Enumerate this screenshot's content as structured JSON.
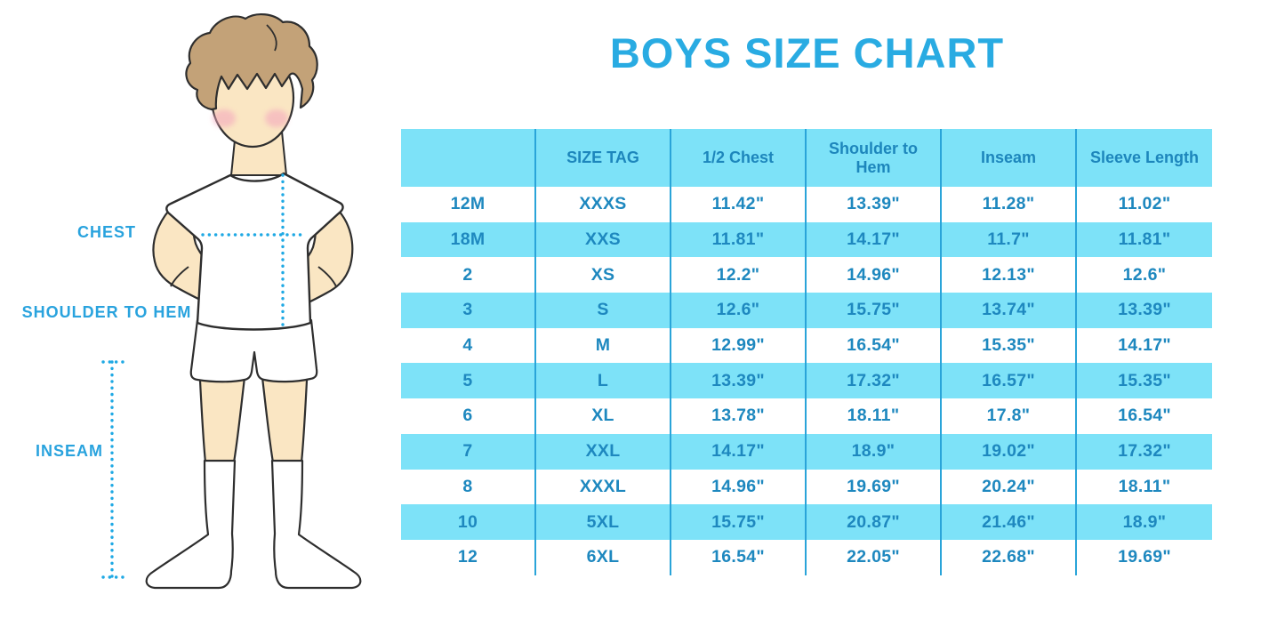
{
  "title": "BOYS SIZE CHART",
  "figure": {
    "description": "boy-with-measurement-guides",
    "labels": {
      "chest": "CHEST",
      "shoulder_to_hem": "SHOULDER TO HEM",
      "inseam": "INSEAM"
    }
  },
  "chart_data": {
    "type": "table",
    "title": "BOYS SIZE CHART",
    "columns": [
      "",
      "SIZE TAG",
      "1/2 Chest",
      "Shoulder to Hem",
      "Inseam",
      "Sleeve Length"
    ],
    "rows": [
      [
        "12M",
        "XXXS",
        "11.42\"",
        "13.39\"",
        "11.28\"",
        "11.02\""
      ],
      [
        "18M",
        "XXS",
        "11.81\"",
        "14.17\"",
        "11.7\"",
        "11.81\""
      ],
      [
        "2",
        "XS",
        "12.2\"",
        "14.96\"",
        "12.13\"",
        "12.6\""
      ],
      [
        "3",
        "S",
        "12.6\"",
        "15.75\"",
        "13.74\"",
        "13.39\""
      ],
      [
        "4",
        "M",
        "12.99\"",
        "16.54\"",
        "15.35\"",
        "14.17\""
      ],
      [
        "5",
        "L",
        "13.39\"",
        "17.32\"",
        "16.57\"",
        "15.35\""
      ],
      [
        "6",
        "XL",
        "13.78\"",
        "18.11\"",
        "17.8\"",
        "16.54\""
      ],
      [
        "7",
        "XXL",
        "14.17\"",
        "18.9\"",
        "19.02\"",
        "17.32\""
      ],
      [
        "8",
        "XXXL",
        "14.96\"",
        "19.69\"",
        "20.24\"",
        "18.11\""
      ],
      [
        "10",
        "5XL",
        "15.75\"",
        "20.87\"",
        "21.46\"",
        "18.9\""
      ],
      [
        "12",
        "6XL",
        "16.54\"",
        "22.05\"",
        "22.68\"",
        "19.69\""
      ]
    ],
    "layout": {
      "stripe_pattern": "alternating white and light blue, header light blue",
      "grid": "vertical dividers only"
    }
  },
  "colors": {
    "title_blue": "#29ABE2",
    "table_stripe_blue": "#7DE2F8",
    "table_text_blue": "#1E88BF",
    "divider_blue": "#2AA4D9",
    "label_blue": "#29A3DE",
    "dotted_line_blue": "#1FA9E4",
    "skin": "#FAE6C3",
    "hair": "#C3A278",
    "cheek_pink": "#F4A9BE",
    "outline": "#2E2E2E"
  }
}
